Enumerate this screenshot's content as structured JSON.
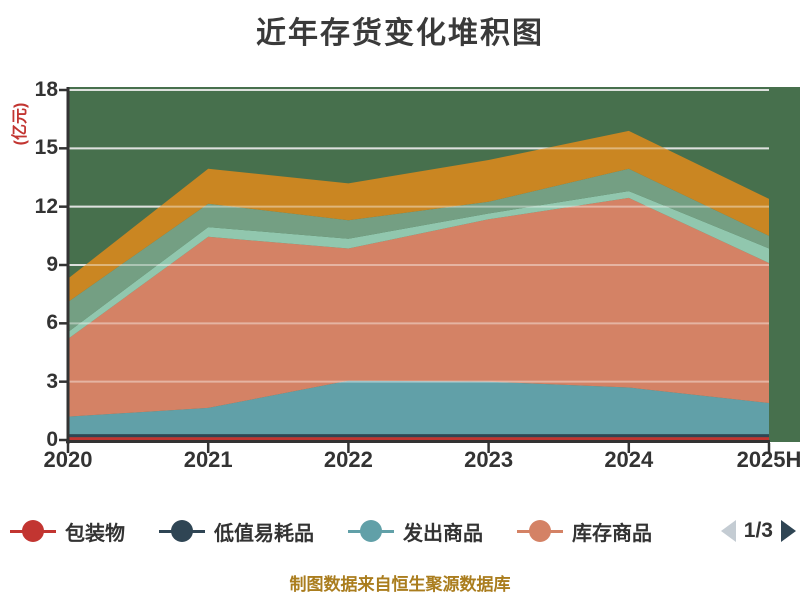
{
  "title": "近年存货变化堆积图",
  "y_axis": {
    "name": "(亿元)",
    "tick_labels": [
      "0",
      "3",
      "6",
      "9",
      "12",
      "15",
      "18"
    ]
  },
  "x_axis": {
    "tick_labels": [
      "2020",
      "2021",
      "2022",
      "2023",
      "2024",
      "2025H"
    ]
  },
  "legend": {
    "items": [
      {
        "label": "包装物",
        "color": "#c23531"
      },
      {
        "label": "低值易耗品",
        "color": "#2f4554"
      },
      {
        "label": "发出商品",
        "color": "#61a0a8"
      },
      {
        "label": "库存商品",
        "color": "#d48265"
      }
    ],
    "page_indicator": "1/3",
    "prev_arrow_color": "#c4ccd3",
    "next_arrow_color": "#2f4554"
  },
  "footer": {
    "source_note": "制图数据来自恒生聚源数据库"
  },
  "colors": {
    "plot_background": "#47704d",
    "gridline": "#c9cec9",
    "gridline_overlay": "rgba(255,255,255,0.40)",
    "axis_line": "#333333",
    "title_text": "#3a3a3a",
    "axis_text": "#333333",
    "y_name_text": "#c23531",
    "footer_text": "#aa7d1e"
  },
  "chart_data": {
    "type": "area",
    "stacked": true,
    "title": "近年存货变化堆积图",
    "unit": "亿元",
    "categories": [
      "2020",
      "2021",
      "2022",
      "2023",
      "2024",
      "2025H"
    ],
    "ylim": [
      0,
      18
    ],
    "y_ticks": [
      0,
      3,
      6,
      9,
      12,
      15,
      18
    ],
    "grid": true,
    "legend_position": "bottom",
    "series": [
      {
        "id": "series-1",
        "name": "包装物",
        "color": "#c23531",
        "values": [
          0.15,
          0.15,
          0.15,
          0.15,
          0.15,
          0.15
        ]
      },
      {
        "id": "series-2",
        "name": "低值易耗品",
        "color": "#2f4554",
        "values": [
          0.15,
          0.15,
          0.15,
          0.15,
          0.15,
          0.15
        ]
      },
      {
        "id": "series-3",
        "name": "发出商品",
        "color": "#61a0a8",
        "values": [
          0.9,
          1.35,
          2.75,
          2.7,
          2.4,
          1.6
        ]
      },
      {
        "id": "series-4",
        "name": "库存商品",
        "color": "#d48265",
        "values": [
          4.0,
          8.8,
          6.8,
          8.35,
          9.75,
          7.2
        ]
      },
      {
        "id": "series-5",
        "name": "",
        "color": "#91c7ae",
        "values": [
          0.35,
          0.5,
          0.5,
          0.3,
          0.35,
          0.75
        ]
      },
      {
        "id": "series-6",
        "name": "",
        "color": "#749f83",
        "values": [
          1.55,
          1.2,
          0.95,
          0.6,
          1.15,
          0.65
        ]
      },
      {
        "id": "series-7",
        "name": "",
        "color": "#ca8622",
        "values": [
          1.2,
          1.8,
          1.9,
          2.15,
          1.95,
          1.9
        ]
      }
    ]
  }
}
